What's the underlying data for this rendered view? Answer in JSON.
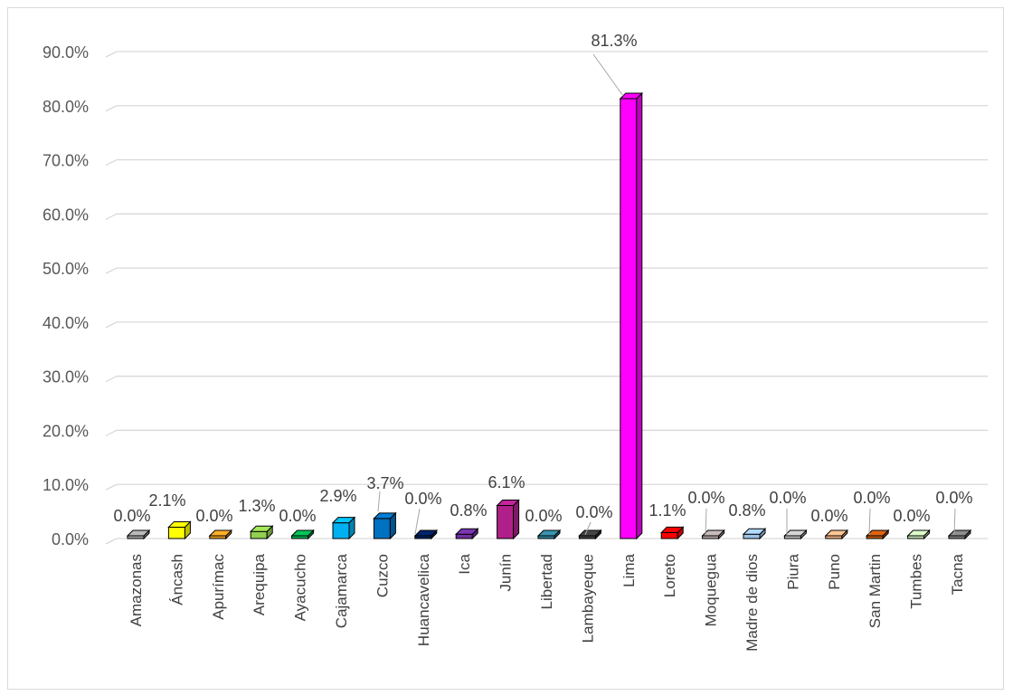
{
  "chart_data": {
    "type": "bar",
    "categories": [
      "Amazonas",
      "Áncash",
      "Apurímac",
      "Arequipa",
      "Ayacucho",
      "Cajamarca",
      "Cuzco",
      "Huancavelica",
      "Ica",
      "Junín",
      "Libertad",
      "Lambayeque",
      "Lima",
      "Loreto",
      "Moquegua",
      "Madre de dios",
      "Piura",
      "Puno",
      "San Martin",
      "Tumbes",
      "Tacna"
    ],
    "values": [
      0.0,
      2.1,
      0.0,
      1.3,
      0.0,
      2.9,
      3.7,
      0.0,
      0.8,
      6.1,
      0.0,
      0.0,
      81.3,
      1.1,
      0.0,
      0.8,
      0.0,
      0.0,
      0.0,
      0.0,
      0.0
    ],
    "data_labels": [
      "0.0%",
      "2.1%",
      "0.0%",
      "1.3%",
      "0.0%",
      "2.9%",
      "3.7%",
      "0.0%",
      "0.8%",
      "6.1%",
      "0.0%",
      "0.0%",
      "81.3%",
      "1.1%",
      "0.0%",
      "0.8%",
      "0.0%",
      "0.0%",
      "0.0%",
      "0.0%",
      "0.0%"
    ],
    "colors": [
      "#a6a6a6",
      "#ffff00",
      "#e69c24",
      "#92d050",
      "#00b050",
      "#00b0f0",
      "#0070c0",
      "#002060",
      "#7030a0",
      "#b0208a",
      "#31859c",
      "#3f3f3f",
      "#ff00ff",
      "#ff0000",
      "#b4a7a7",
      "#9dc3e6",
      "#bfbfbf",
      "#f4b183",
      "#c55a11",
      "#c5e0b4",
      "#7f7f7f"
    ],
    "ylim": [
      0,
      90
    ],
    "yticks": [
      "0.0%",
      "10.0%",
      "20.0%",
      "30.0%",
      "40.0%",
      "50.0%",
      "60.0%",
      "70.0%",
      "80.0%",
      "90.0%"
    ],
    "grid": true,
    "title": "",
    "xlabel": "",
    "ylabel": ""
  }
}
